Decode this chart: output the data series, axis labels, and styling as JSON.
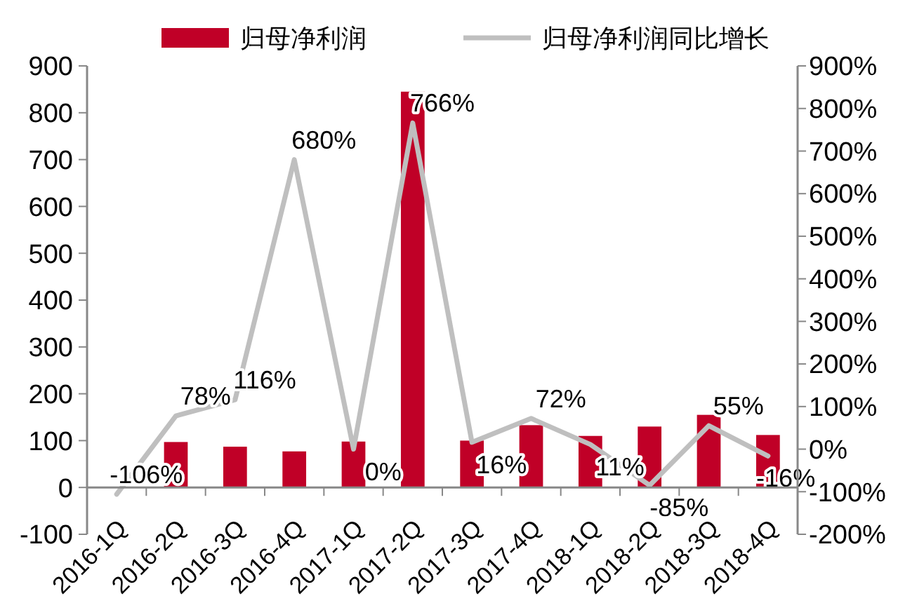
{
  "chart_data": {
    "type": "bar",
    "categories": [
      "2016-1Q",
      "2016-2Q",
      "2016-3Q",
      "2016-4Q",
      "2017-1Q",
      "2017-2Q",
      "2017-3Q",
      "2017-4Q",
      "2018-1Q",
      "2018-2Q",
      "2018-3Q",
      "2018-4Q"
    ],
    "series": [
      {
        "name": "归母净利润",
        "color": "#c00027",
        "values": [
          0,
          97,
          87,
          77,
          98,
          845,
          100,
          133,
          110,
          130,
          155,
          112
        ]
      },
      {
        "name": "归母净利润同比增长",
        "type": "line",
        "axis": "y2",
        "color": "#bfbfbf",
        "values": [
          -106,
          78,
          116,
          680,
          0,
          766,
          16,
          72,
          11,
          -85,
          55,
          -16
        ],
        "value_labels": [
          "-106%",
          "78%",
          "116%",
          "680%",
          "0%",
          "766%",
          "16%",
          "72%",
          "11%",
          "-85%",
          "55%",
          "-16%"
        ]
      }
    ],
    "ylim": [
      -100,
      900
    ],
    "yticks": [
      -100,
      0,
      100,
      200,
      300,
      400,
      500,
      600,
      700,
      800,
      900
    ],
    "y2lim": [
      -200,
      900
    ],
    "y2ticks": [
      {
        "value": -200,
        "label": "-200%"
      },
      {
        "value": -100,
        "label": "-100%"
      },
      {
        "value": 0,
        "label": "0%"
      },
      {
        "value": 100,
        "label": "100%"
      },
      {
        "value": 200,
        "label": "200%"
      },
      {
        "value": 300,
        "label": "300%"
      },
      {
        "value": 400,
        "label": "400%"
      },
      {
        "value": 500,
        "label": "500%"
      },
      {
        "value": 600,
        "label": "600%"
      },
      {
        "value": 700,
        "label": "700%"
      },
      {
        "value": 800,
        "label": "800%"
      },
      {
        "value": 900,
        "label": "900%"
      }
    ],
    "legend": "top",
    "grid": false,
    "marker": "none"
  }
}
